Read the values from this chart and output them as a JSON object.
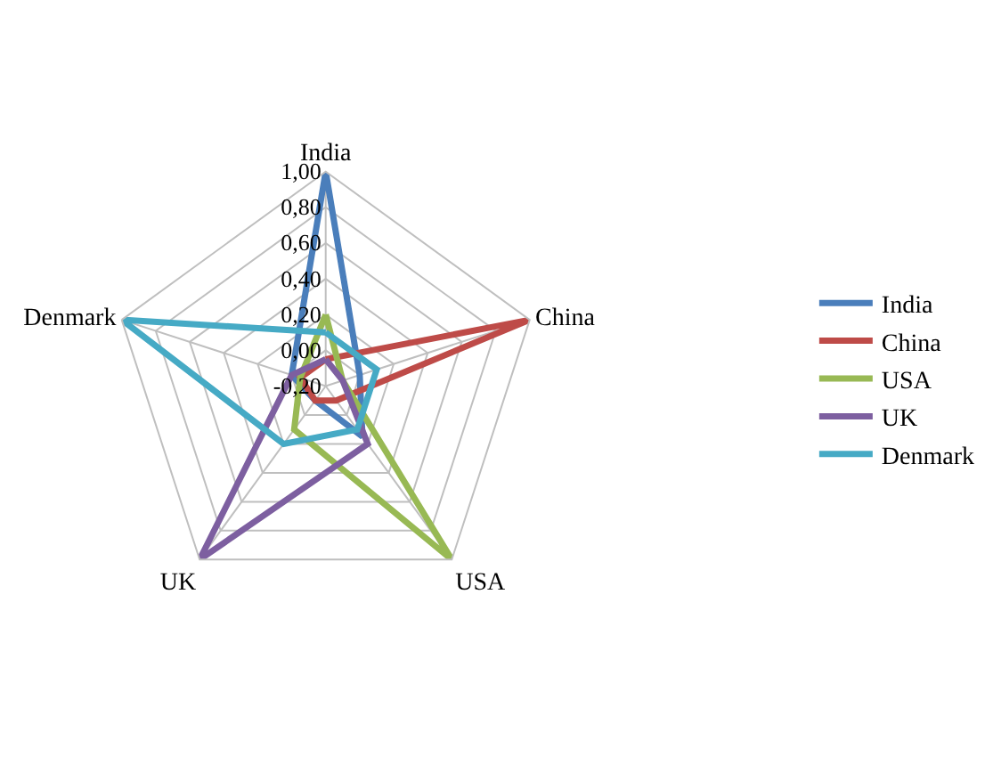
{
  "chart_data": {
    "type": "radar",
    "categories": [
      "India",
      "China",
      "USA",
      "UK",
      "Denmark"
    ],
    "series": [
      {
        "name": "India",
        "color": "#4a7ebb",
        "values": [
          1.0,
          0.0,
          0.15,
          -0.1,
          0.0
        ]
      },
      {
        "name": "China",
        "color": "#be4b48",
        "values": [
          -0.05,
          1.0,
          -0.1,
          -0.1,
          -0.05
        ]
      },
      {
        "name": "USA",
        "color": "#98b954",
        "values": [
          0.2,
          -0.1,
          1.0,
          0.1,
          -0.05
        ]
      },
      {
        "name": "UK",
        "color": "#7d5fa0",
        "values": [
          -0.05,
          -0.1,
          0.2,
          1.0,
          0.0
        ]
      },
      {
        "name": "Denmark",
        "color": "#46aac5",
        "values": [
          0.1,
          0.1,
          0.1,
          0.2,
          1.0
        ]
      }
    ],
    "ylim": [
      -0.2,
      1.0
    ],
    "yticks": [
      {
        "value": -0.2,
        "label": "-0,20"
      },
      {
        "value": 0.0,
        "label": "0,00"
      },
      {
        "value": 0.2,
        "label": "0,20"
      },
      {
        "value": 0.4,
        "label": "0,40"
      },
      {
        "value": 0.6,
        "label": "0,60"
      },
      {
        "value": 0.8,
        "label": "0,80"
      },
      {
        "value": 1.0,
        "label": "1,00"
      }
    ],
    "grid": true,
    "legend": "right",
    "marker": "none",
    "line_style": "solid"
  }
}
